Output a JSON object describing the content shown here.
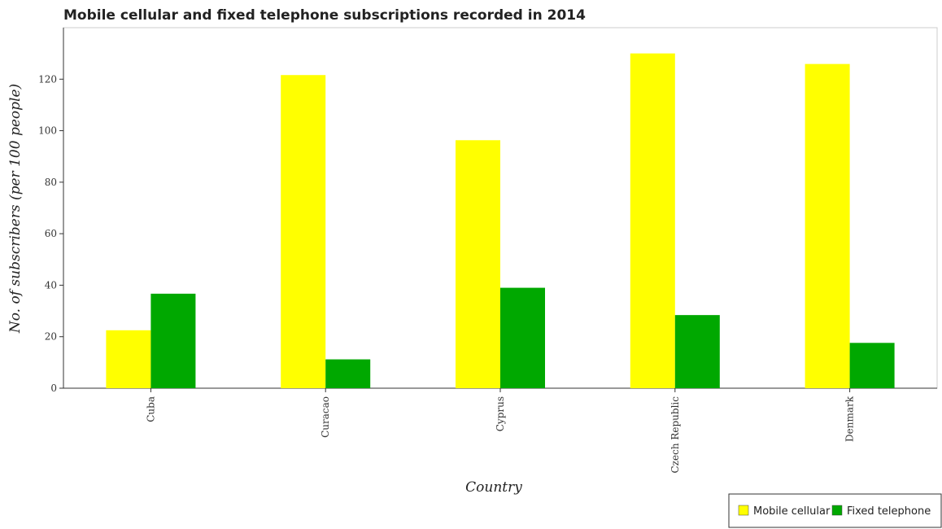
{
  "chart_data": {
    "type": "bar",
    "title": "Mobile cellular and fixed telephone subscriptions recorded in 2014",
    "xlabel": "Country",
    "ylabel": "No. of subscribers (per 100 people)",
    "categories": [
      "Cuba",
      "Curacao",
      "Cyprus",
      "Czech Republic",
      "Denmark"
    ],
    "ylim": [
      0,
      140
    ],
    "yticks": [
      0,
      20,
      40,
      60,
      80,
      100,
      120
    ],
    "series": [
      {
        "name": "Mobile cellular",
        "color": "#ffff00",
        "values": [
          22.5,
          121.6,
          96.3,
          130.0,
          125.9
        ]
      },
      {
        "name": "Fixed telephone",
        "color": "#00a800",
        "values": [
          36.7,
          11.2,
          39.0,
          28.4,
          17.6
        ]
      }
    ],
    "legend_position": "bottom-right",
    "grid": false
  }
}
